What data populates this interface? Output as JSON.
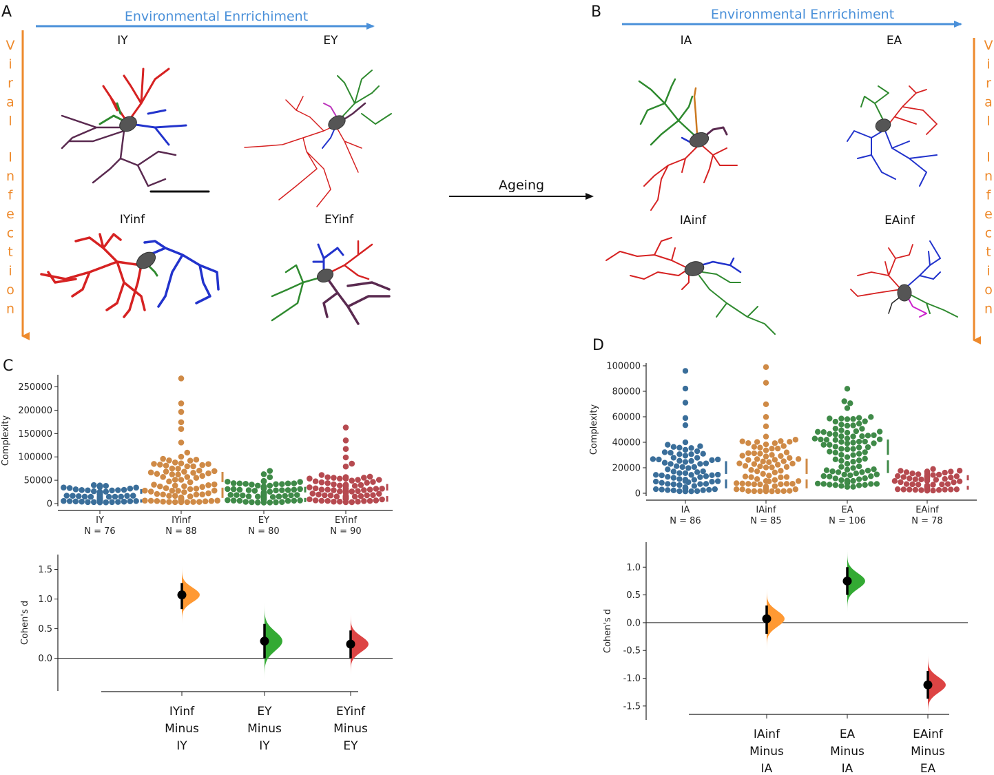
{
  "panels": {
    "A": {
      "letter": "A",
      "top_axis_label": "Environmental Enrrichiment",
      "side_axis_label": "Viral Infection",
      "groups": [
        "IY",
        "EY",
        "IYinf",
        "EYinf"
      ]
    },
    "B": {
      "letter": "B",
      "top_axis_label": "Environmental Enrrichiment",
      "side_axis_label": "Viral Infection",
      "groups": [
        "IA",
        "EA",
        "IAinf",
        "EAinf"
      ]
    },
    "ageing_label": "Ageing",
    "C": {
      "letter": "C"
    },
    "D": {
      "letter": "D"
    }
  },
  "colors": {
    "blue": "#3a6e9a",
    "orange": "#cf8a46",
    "green": "#3f8a48",
    "red": "#b64a50",
    "axis_blue": "#4a90d9",
    "axis_orange": "#ee8a2c",
    "neuron_red": "#d62222",
    "neuron_blue": "#2233cc",
    "neuron_green": "#2f8a2f",
    "neuron_purple": "#5a2a50",
    "soma": "#555555"
  },
  "chart_data": [
    {
      "id": "C-swarm",
      "type": "scatter",
      "subtype": "swarm",
      "ylabel": "Complexity",
      "ylim": [
        0,
        270000
      ],
      "yticks": [
        "0",
        "50000",
        "100000",
        "150000",
        "200000",
        "250000"
      ],
      "ytick_values": [
        0,
        50000,
        100000,
        150000,
        200000,
        250000
      ],
      "categories": [
        "IY",
        "IYinf",
        "EY",
        "EYinf"
      ],
      "n_labels": [
        "N = 76",
        "N = 88",
        "N = 80",
        "N = 90"
      ],
      "series": [
        {
          "name": "IY",
          "n": 76,
          "min": 2000,
          "max": 38000,
          "median": 15000,
          "q1": 8000,
          "q3": 25000
        },
        {
          "name": "IYinf",
          "n": 88,
          "min": 3000,
          "max": 268000,
          "median": 40000,
          "q1": 18000,
          "q3": 62000
        },
        {
          "name": "EY",
          "n": 80,
          "min": 2000,
          "max": 70000,
          "median": 18000,
          "q1": 9000,
          "q3": 30000
        },
        {
          "name": "EYinf",
          "n": 90,
          "min": 2000,
          "max": 163000,
          "median": 22000,
          "q1": 10000,
          "q3": 36000
        }
      ]
    },
    {
      "id": "C-effect",
      "type": "scatter",
      "subtype": "estimation",
      "ylabel": "Cohen's d",
      "ylim": [
        -0.55,
        1.75
      ],
      "yticks": [
        "0.0",
        "0.5",
        "1.0",
        "1.5"
      ],
      "ytick_values": [
        0,
        0.5,
        1.0,
        1.5
      ],
      "contrasts": [
        {
          "lines": [
            "IYinf",
            "Minus",
            "IY"
          ],
          "d": 1.07,
          "ci": [
            0.83,
            1.27
          ]
        },
        {
          "lines": [
            "EY",
            "Minus",
            "IY"
          ],
          "d": 0.29,
          "ci": [
            0.0,
            0.58
          ]
        },
        {
          "lines": [
            "EYinf",
            "Minus",
            "EY"
          ],
          "d": 0.24,
          "ci": [
            0.0,
            0.47
          ]
        }
      ]
    },
    {
      "id": "D-swarm",
      "type": "scatter",
      "subtype": "swarm",
      "ylabel": "Complexity",
      "ylim": [
        0,
        100000
      ],
      "yticks": [
        "0",
        "20000",
        "40000",
        "60000",
        "80000",
        "100000"
      ],
      "ytick_values": [
        0,
        20000,
        40000,
        60000,
        80000,
        100000
      ],
      "categories": [
        "IA",
        "IAinf",
        "EA",
        "EAinf"
      ],
      "n_labels": [
        "N = 86",
        "N = 85",
        "N = 106",
        "N = 78"
      ],
      "series": [
        {
          "name": "IA",
          "n": 86,
          "min": 1500,
          "max": 96000,
          "median": 13000,
          "q1": 6000,
          "q3": 23000
        },
        {
          "name": "IAinf",
          "n": 85,
          "min": 1500,
          "max": 99000,
          "median": 13000,
          "q1": 6000,
          "q3": 25000
        },
        {
          "name": "EA",
          "n": 106,
          "min": 5000,
          "max": 82000,
          "median": 28000,
          "q1": 18000,
          "q3": 40000
        },
        {
          "name": "EAinf",
          "n": 78,
          "min": 2000,
          "max": 19000,
          "median": 8000,
          "q1": 5000,
          "q3": 12000
        }
      ]
    },
    {
      "id": "D-effect",
      "type": "scatter",
      "subtype": "estimation",
      "ylabel": "Cohen's d",
      "ylim": [
        -1.75,
        1.45
      ],
      "yticks": [
        "1.0",
        "0.5",
        "0.0",
        "-0.5",
        "-1.0",
        "-1.5"
      ],
      "ytick_values": [
        1.0,
        0.5,
        0.0,
        -0.5,
        -1.0,
        -1.5
      ],
      "contrasts": [
        {
          "lines": [
            "IAinf",
            "Minus",
            "IA"
          ],
          "d": 0.07,
          "ci": [
            -0.2,
            0.31
          ]
        },
        {
          "lines": [
            "EA",
            "Minus",
            "IA"
          ],
          "d": 0.75,
          "ci": [
            0.5,
            1.0
          ]
        },
        {
          "lines": [
            "EAinf",
            "Minus",
            "EA"
          ],
          "d": -1.12,
          "ci": [
            -1.37,
            -0.87
          ]
        }
      ]
    }
  ]
}
